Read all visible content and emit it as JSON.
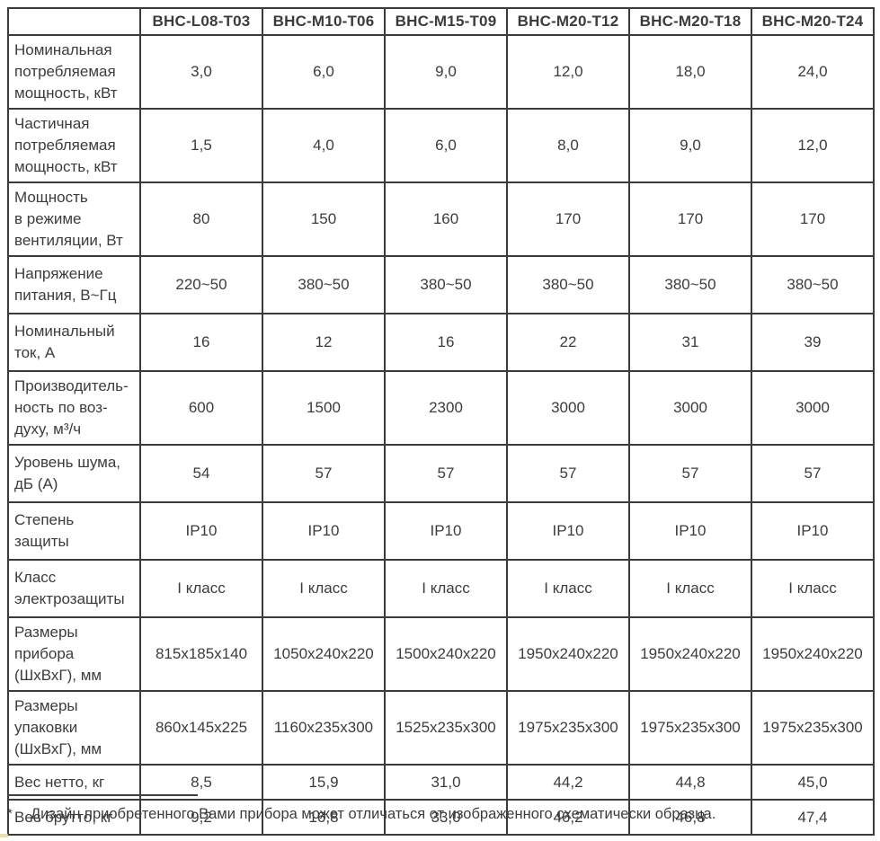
{
  "table": {
    "corner_label": "",
    "col_headers": [
      "BHC-L08-T03",
      "BHC-M10-T06",
      "BHC-M15-T09",
      "BHC-M20-T12",
      "BHC-M20-T18",
      "BHC-M20-T24"
    ],
    "rows": [
      {
        "label_lines": [
          "Номинальная",
          "потребляемая",
          "мощность, кВт"
        ],
        "values": [
          "3,0",
          "6,0",
          "9,0",
          "12,0",
          "18,0",
          "24,0"
        ]
      },
      {
        "label_lines": [
          "Частичная",
          "потребляемая",
          "мощность, кВт"
        ],
        "values": [
          "1,5",
          "4,0",
          "6,0",
          "8,0",
          "9,0",
          "12,0"
        ]
      },
      {
        "label_lines": [
          "Мощность",
          "в режиме",
          "вентиляции, Вт"
        ],
        "values": [
          "80",
          "150",
          "160",
          "170",
          "170",
          "170"
        ]
      },
      {
        "label_lines": [
          "Напряжение",
          "питания, В~Гц"
        ],
        "values": [
          "220~50",
          "380~50",
          "380~50",
          "380~50",
          "380~50",
          "380~50"
        ]
      },
      {
        "label_lines": [
          "Номинальный",
          "ток, А"
        ],
        "values": [
          "16",
          "12",
          "16",
          "22",
          "31",
          "39"
        ]
      },
      {
        "label_lines": [
          "Производитель-",
          "ность по воз-",
          "духу, м³/ч"
        ],
        "values": [
          "600",
          "1500",
          "2300",
          "3000",
          "3000",
          "3000"
        ]
      },
      {
        "label_lines": [
          "Уровень шума,",
          "дБ (А)"
        ],
        "values": [
          "54",
          "57",
          "57",
          "57",
          "57",
          "57"
        ]
      },
      {
        "label_lines": [
          "Степень",
          "защиты"
        ],
        "values": [
          "IP10",
          "IP10",
          "IP10",
          "IP10",
          "IP10",
          "IP10"
        ]
      },
      {
        "label_lines": [
          "Класс",
          "электрозащиты"
        ],
        "values": [
          "I класс",
          "I класс",
          "I класс",
          "I класс",
          "I класс",
          "I класс"
        ]
      },
      {
        "label_lines": [
          "Размеры",
          "прибора",
          "(ШхВхГ), мм"
        ],
        "values": [
          "815х185х140",
          "1050х240х220",
          "1500х240х220",
          "1950х240х220",
          "1950х240х220",
          "1950х240х220"
        ]
      },
      {
        "label_lines": [
          "Размеры",
          "упаковки",
          "(ШхВхГ), мм"
        ],
        "values": [
          "860х145х225",
          "1160х235х300",
          "1525х235х300",
          "1975х235х300",
          "1975х235х300",
          "1975х235х300"
        ]
      },
      {
        "label_lines": [
          "Вес нетто, кг"
        ],
        "values": [
          "8,5",
          "15,9",
          "31,0",
          "44,2",
          "44,8",
          "45,0"
        ]
      },
      {
        "label_lines": [
          "Вес брутто, кг"
        ],
        "values": [
          "9,2",
          "16,8",
          "33,0",
          "46,2",
          "46,8",
          "47,4"
        ]
      }
    ]
  },
  "footnote": {
    "marker": "*",
    "text": "Дизайн приобретенного Вами прибора может отличаться от изображенного схематически образца."
  },
  "colors": {
    "border": "#3a3a3a",
    "text": "#3c3c3c",
    "background": "#ffffff"
  }
}
